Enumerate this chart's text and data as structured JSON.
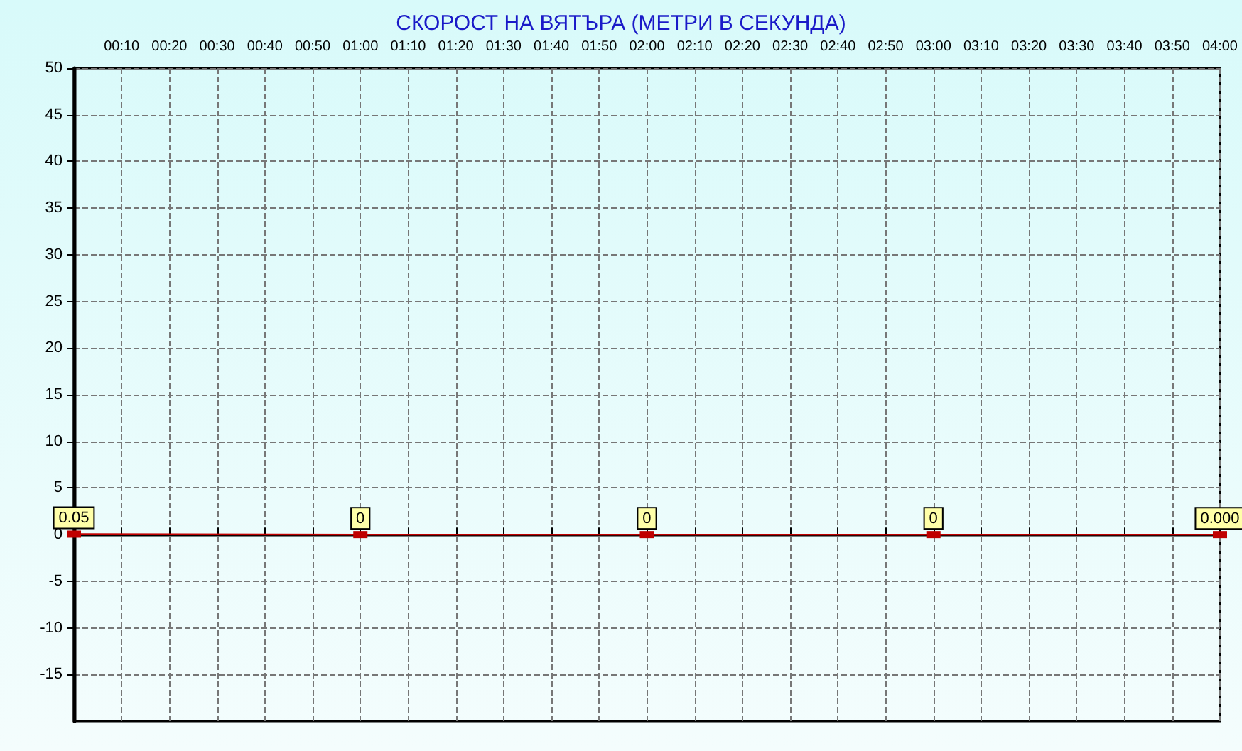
{
  "chart_data": {
    "type": "line",
    "title": "СКОРОСТ НА ВЯТЪРА (МЕТРИ В СЕКУНДА)",
    "x": [
      0,
      1,
      2,
      3,
      4
    ],
    "series": [
      {
        "color": "#c00000",
        "values": [
          0.05,
          0,
          0,
          0,
          0
        ],
        "value_labels": [
          "0.05",
          "0",
          "0",
          "0",
          "0.000"
        ]
      }
    ],
    "xlim": [
      0,
      4
    ],
    "xticks": [
      {
        "value": 0.1667,
        "label": "00:10"
      },
      {
        "value": 0.3333,
        "label": "00:20"
      },
      {
        "value": 0.5,
        "label": "00:30"
      },
      {
        "value": 0.6667,
        "label": "00:40"
      },
      {
        "value": 0.8333,
        "label": "00:50"
      },
      {
        "value": 1,
        "label": "01:00"
      },
      {
        "value": 1.1667,
        "label": "01:10"
      },
      {
        "value": 1.3333,
        "label": "01:20"
      },
      {
        "value": 1.5,
        "label": "01:30"
      },
      {
        "value": 1.6667,
        "label": "01:40"
      },
      {
        "value": 1.8333,
        "label": "01:50"
      },
      {
        "value": 2,
        "label": "02:00"
      },
      {
        "value": 2.1667,
        "label": "02:10"
      },
      {
        "value": 2.3333,
        "label": "02:20"
      },
      {
        "value": 2.5,
        "label": "02:30"
      },
      {
        "value": 2.6667,
        "label": "02:40"
      },
      {
        "value": 2.8333,
        "label": "02:50"
      },
      {
        "value": 3,
        "label": "03:00"
      },
      {
        "value": 3.1667,
        "label": "03:10"
      },
      {
        "value": 3.3333,
        "label": "03:20"
      },
      {
        "value": 3.5,
        "label": "03:30"
      },
      {
        "value": 3.6667,
        "label": "03:40"
      },
      {
        "value": 3.8333,
        "label": "03:50"
      },
      {
        "value": 4,
        "label": "04:00"
      }
    ],
    "ylim": [
      -20,
      50
    ],
    "yticks": [
      -15,
      -10,
      -5,
      0,
      5,
      10,
      15,
      20,
      25,
      30,
      35,
      40,
      45,
      50
    ],
    "grid": true,
    "marker": "square",
    "line_style": "solid"
  }
}
